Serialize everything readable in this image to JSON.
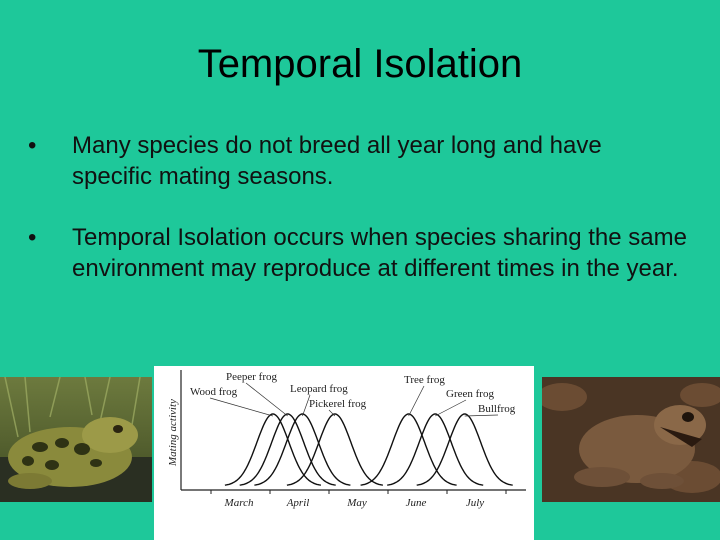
{
  "slide": {
    "title": "Temporal Isolation",
    "bullets": [
      {
        "symbol": "•",
        "text": "Many species do not breed all year long and have specific mating seasons."
      },
      {
        "symbol": "•",
        "text": "Temporal Isolation occurs when species sharing the same environment may reproduce at different times in the year."
      }
    ]
  },
  "photos": {
    "left": {
      "icon": "leopard-frog-photo"
    },
    "right": {
      "icon": "wood-frog-photo"
    }
  },
  "chart_data": {
    "type": "line",
    "title": "",
    "ylabel": "Mating activity",
    "xlabel": "",
    "categories": [
      "March",
      "April",
      "May",
      "June",
      "July"
    ],
    "series": [
      {
        "name": "Wood frog",
        "peak_month": 1.05,
        "color": "#111111"
      },
      {
        "name": "Peeper frog",
        "peak_month": 1.3,
        "color": "#111111"
      },
      {
        "name": "Leopard frog",
        "peak_month": 1.55,
        "color": "#111111"
      },
      {
        "name": "Pickerel frog",
        "peak_month": 2.1,
        "color": "#111111"
      },
      {
        "name": "Tree frog",
        "peak_month": 3.35,
        "color": "#111111"
      },
      {
        "name": "Green frog",
        "peak_month": 3.8,
        "color": "#111111"
      },
      {
        "name": "Bullfrog",
        "peak_month": 4.3,
        "color": "#111111"
      }
    ],
    "grid": false,
    "legend": "curve labels above peaks"
  }
}
